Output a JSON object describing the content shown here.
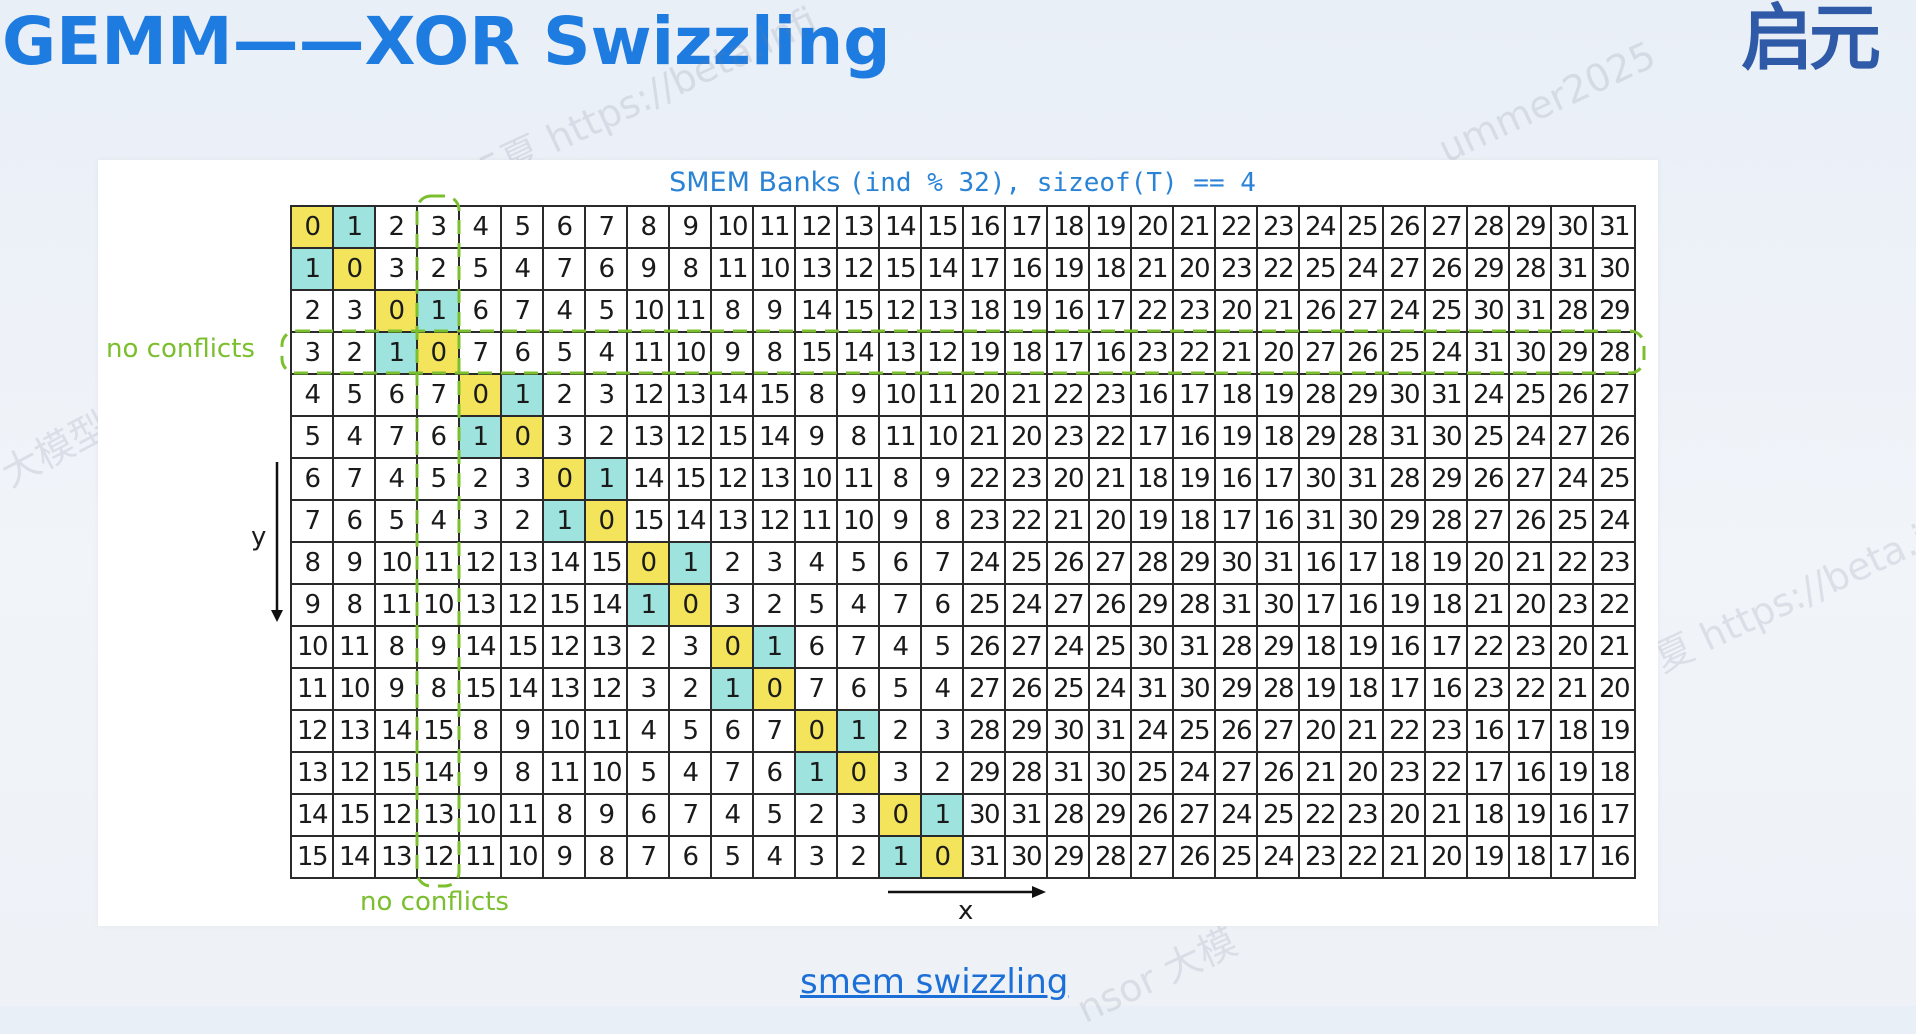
{
  "slide": {
    "title": "GEMM——XOR Swizzling",
    "logo_text": "启元",
    "watermarks": [
      "25夏 https://beta.infi",
      "ummer2025",
      "大模型上",
      "夏 https://beta.inf",
      "nsor 大模"
    ],
    "caption": "smem swizzling"
  },
  "diagram": {
    "title_text": "SMEM Banks ",
    "title_code": "(ind % 32), sizeof(T) == 4",
    "row_label": "no conflicts",
    "col_label": "no conflicts",
    "axis_x": "x",
    "axis_y": "y",
    "colors": {
      "zero": "#f3e45b",
      "one": "#9fe3de",
      "dashed": "#7bbf2e",
      "grid": "#2a2a2a"
    },
    "highlight_legend": {
      "zero_value": "0",
      "one_value": "1"
    },
    "rows": [
      [
        "0",
        "1",
        "2",
        "3",
        "4",
        "5",
        "6",
        "7",
        "8",
        "9",
        "10",
        "11",
        "12",
        "13",
        "14",
        "15",
        "16",
        "17",
        "18",
        "19",
        "20",
        "21",
        "22",
        "23",
        "24",
        "25",
        "26",
        "27",
        "28",
        "29",
        "30",
        "31"
      ],
      [
        "1",
        "0",
        "3",
        "2",
        "5",
        "4",
        "7",
        "6",
        "9",
        "8",
        "11",
        "10",
        "13",
        "12",
        "15",
        "14",
        "17",
        "16",
        "19",
        "18",
        "21",
        "20",
        "23",
        "22",
        "25",
        "24",
        "27",
        "26",
        "29",
        "28",
        "31",
        "30"
      ],
      [
        "2",
        "3",
        "0",
        "1",
        "6",
        "7",
        "4",
        "5",
        "10",
        "11",
        "8",
        "9",
        "14",
        "15",
        "12",
        "13",
        "18",
        "19",
        "16",
        "17",
        "22",
        "23",
        "20",
        "21",
        "26",
        "27",
        "24",
        "25",
        "30",
        "31",
        "28",
        "29"
      ],
      [
        "3",
        "2",
        "1",
        "0",
        "7",
        "6",
        "5",
        "4",
        "11",
        "10",
        "9",
        "8",
        "15",
        "14",
        "13",
        "12",
        "19",
        "18",
        "17",
        "16",
        "23",
        "22",
        "21",
        "20",
        "27",
        "26",
        "25",
        "24",
        "31",
        "30",
        "29",
        "28"
      ],
      [
        "4",
        "5",
        "6",
        "7",
        "0",
        "1",
        "2",
        "3",
        "12",
        "13",
        "14",
        "15",
        "8",
        "9",
        "10",
        "11",
        "20",
        "21",
        "22",
        "23",
        "16",
        "17",
        "18",
        "19",
        "28",
        "29",
        "30",
        "31",
        "24",
        "25",
        "26",
        "27"
      ],
      [
        "5",
        "4",
        "7",
        "6",
        "1",
        "0",
        "3",
        "2",
        "13",
        "12",
        "15",
        "14",
        "9",
        "8",
        "11",
        "10",
        "21",
        "20",
        "23",
        "22",
        "17",
        "16",
        "19",
        "18",
        "29",
        "28",
        "31",
        "30",
        "25",
        "24",
        "27",
        "26"
      ],
      [
        "6",
        "7",
        "4",
        "5",
        "2",
        "3",
        "0",
        "1",
        "14",
        "15",
        "12",
        "13",
        "10",
        "11",
        "8",
        "9",
        "22",
        "23",
        "20",
        "21",
        "18",
        "19",
        "16",
        "17",
        "30",
        "31",
        "28",
        "29",
        "26",
        "27",
        "24",
        "25"
      ],
      [
        "7",
        "6",
        "5",
        "4",
        "3",
        "2",
        "1",
        "0",
        "15",
        "14",
        "13",
        "12",
        "11",
        "10",
        "9",
        "8",
        "23",
        "22",
        "21",
        "20",
        "19",
        "18",
        "17",
        "16",
        "31",
        "30",
        "29",
        "28",
        "27",
        "26",
        "25",
        "24"
      ],
      [
        "8",
        "9",
        "10",
        "11",
        "12",
        "13",
        "14",
        "15",
        "0",
        "1",
        "2",
        "3",
        "4",
        "5",
        "6",
        "7",
        "24",
        "25",
        "26",
        "27",
        "28",
        "29",
        "30",
        "31",
        "16",
        "17",
        "18",
        "19",
        "20",
        "21",
        "22",
        "23"
      ],
      [
        "9",
        "8",
        "11",
        "10",
        "13",
        "12",
        "15",
        "14",
        "1",
        "0",
        "3",
        "2",
        "5",
        "4",
        "7",
        "6",
        "25",
        "24",
        "27",
        "26",
        "29",
        "28",
        "31",
        "30",
        "17",
        "16",
        "19",
        "18",
        "21",
        "20",
        "23",
        "22"
      ],
      [
        "10",
        "11",
        "8",
        "9",
        "14",
        "15",
        "12",
        "13",
        "2",
        "3",
        "0",
        "1",
        "6",
        "7",
        "4",
        "5",
        "26",
        "27",
        "24",
        "25",
        "30",
        "31",
        "28",
        "29",
        "18",
        "19",
        "16",
        "17",
        "22",
        "23",
        "20",
        "21"
      ],
      [
        "11",
        "10",
        "9",
        "8",
        "15",
        "14",
        "13",
        "12",
        "3",
        "2",
        "1",
        "0",
        "7",
        "6",
        "5",
        "4",
        "27",
        "26",
        "25",
        "24",
        "31",
        "30",
        "29",
        "28",
        "19",
        "18",
        "17",
        "16",
        "23",
        "22",
        "21",
        "20"
      ],
      [
        "12",
        "13",
        "14",
        "15",
        "8",
        "9",
        "10",
        "11",
        "4",
        "5",
        "6",
        "7",
        "0",
        "1",
        "2",
        "3",
        "28",
        "29",
        "30",
        "31",
        "24",
        "25",
        "26",
        "27",
        "20",
        "21",
        "22",
        "23",
        "16",
        "17",
        "18",
        "19"
      ],
      [
        "13",
        "12",
        "15",
        "14",
        "9",
        "8",
        "11",
        "10",
        "5",
        "4",
        "7",
        "6",
        "1",
        "0",
        "3",
        "2",
        "29",
        "28",
        "31",
        "30",
        "25",
        "24",
        "27",
        "26",
        "21",
        "20",
        "23",
        "22",
        "17",
        "16",
        "19",
        "18"
      ],
      [
        "14",
        "15",
        "12",
        "13",
        "10",
        "11",
        "8",
        "9",
        "6",
        "7",
        "4",
        "5",
        "2",
        "3",
        "0",
        "1",
        "30",
        "31",
        "28",
        "29",
        "26",
        "27",
        "24",
        "25",
        "22",
        "23",
        "20",
        "21",
        "18",
        "19",
        "16",
        "17"
      ],
      [
        "15",
        "14",
        "13",
        "12",
        "11",
        "10",
        "9",
        "8",
        "7",
        "6",
        "5",
        "4",
        "3",
        "2",
        "1",
        "0",
        "31",
        "30",
        "29",
        "28",
        "27",
        "26",
        "25",
        "24",
        "23",
        "22",
        "21",
        "20",
        "19",
        "18",
        "17",
        "16"
      ]
    ]
  }
}
